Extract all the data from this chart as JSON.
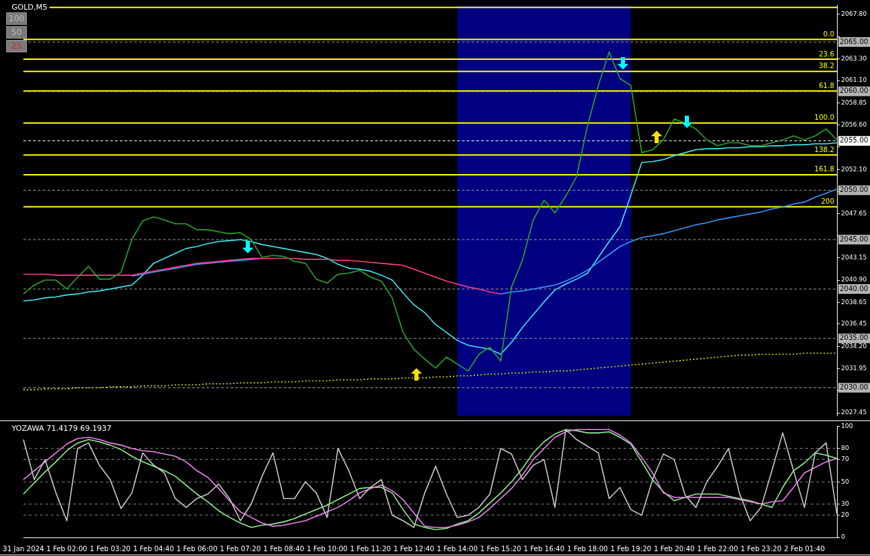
{
  "chart_data": [
    {
      "type": "line",
      "title": "GOLD,M5",
      "tick_labels": "y",
      "marker": "none",
      "legend": false,
      "grid": false,
      "annotations": [
        "100",
        "50",
        "25",
        {
          "text": "0.0",
          "y": 2065.27
        },
        {
          "text": "23.6",
          "y": 2063.27
        },
        {
          "text": "38.2",
          "y": 2062.03
        },
        {
          "text": "61.8",
          "y": 2060.04
        },
        {
          "text": "100.0",
          "y": 2056.8
        },
        {
          "text": "138.2",
          "y": 2053.56
        },
        {
          "text": "161.8",
          "y": 2051.57
        },
        {
          "text": "200",
          "y": 2048.33
        }
      ],
      "categories": [
        "31 Jan 2024",
        null,
        null,
        null,
        "1 Feb 02:00",
        null,
        null,
        null,
        "1 Feb 03:20",
        null,
        null,
        null,
        "1 Feb 04:40",
        null,
        null,
        null,
        "1 Feb 06:00",
        null,
        null,
        null,
        "1 Feb 07:20",
        null,
        null,
        null,
        "1 Feb 08:40",
        null,
        null,
        null,
        "1 Feb 10:00",
        null,
        null,
        null,
        "1 Feb 11:20",
        null,
        null,
        null,
        "1 Feb 12:40",
        null,
        null,
        null,
        "1 Feb 14:00",
        null,
        null,
        null,
        "1 Feb 15:20",
        null,
        null,
        null,
        "1 Feb 16:40",
        null,
        null,
        null,
        "1 Feb 18:00",
        null,
        null,
        null,
        "1 Feb 19:20",
        null,
        null,
        null,
        "1 Feb 20:40",
        null,
        null,
        null,
        "1 Feb 22:00",
        null,
        null,
        null,
        "1 Feb 23:20",
        null,
        null,
        null,
        "2 Feb 01:40",
        null,
        null,
        null
      ],
      "ylim": [
        2027.14,
        2068.74
      ],
      "yticks": [
        2027.45,
        {
          "value": 2029.7,
          "label": null
        },
        2031.95,
        {
          "value": 2034.2,
          "label": "2034.20"
        },
        2036.45,
        2038.65,
        {
          "value": 2040.9,
          "label": "2040.90"
        },
        2043.15,
        {
          "value": 2045.4,
          "label": null
        },
        2047.65,
        {
          "value": 2049.85,
          "label": null
        },
        {
          "value": 2052.1,
          "label": "2052.10"
        },
        {
          "value": 2054.35,
          "label": null
        },
        {
          "value": 2056.6,
          "label": "2056.60"
        },
        2058.85,
        {
          "value": 2061.1,
          "label": "2061.10"
        },
        {
          "value": 2063.3,
          "label": "2063.30"
        },
        {
          "value": 2065.55,
          "label": null
        },
        {
          "value": 2067.8,
          "label": "2067.80"
        }
      ],
      "bands": [
        {
          "axis": "x",
          "from": "1 Feb 14:00",
          "to": "1 Feb 19:20",
          "color": "#000080"
        }
      ],
      "ref_lines": [
        {
          "axis": "y",
          "value": 2065,
          "label": "2065.00",
          "color": "#9a9a9a",
          "line_style": "dashed"
        },
        {
          "axis": "y",
          "value": 2060,
          "label": "2060.00",
          "color": "#9a9a9a",
          "line_style": "dashed"
        },
        {
          "axis": "y",
          "value": 2055,
          "label": "2055.00",
          "color": "#ffffff",
          "line_style": "dashed"
        },
        {
          "axis": "y",
          "value": 2050,
          "label": "2050.00",
          "color": "#9a9a9a",
          "line_style": "dashed"
        },
        {
          "axis": "y",
          "value": 2045,
          "label": "2045.00",
          "color": "#9a9a9a",
          "line_style": "dashed"
        },
        {
          "axis": "y",
          "value": 2040,
          "label": "2040.00",
          "color": "#9a9a9a",
          "line_style": "dashed"
        },
        {
          "axis": "y",
          "value": 2035,
          "label": "2035.00",
          "color": "#9a9a9a",
          "line_style": "dashed"
        },
        {
          "axis": "y",
          "value": 2030,
          "label": "2030.00",
          "color": "#9a9a9a",
          "line_style": "dashed"
        },
        {
          "axis": "y",
          "value": 2068.5,
          "color": "#ffff00",
          "line_style": "solid"
        },
        {
          "axis": "y",
          "value": 2065.27,
          "color": "#ffff00",
          "line_style": "solid"
        },
        {
          "axis": "y",
          "value": 2063.27,
          "color": "#ffff00",
          "line_style": "solid"
        },
        {
          "axis": "y",
          "value": 2062.03,
          "color": "#ffff00",
          "line_style": "solid"
        },
        {
          "axis": "y",
          "value": 2060.04,
          "color": "#ffff00",
          "line_style": "solid"
        },
        {
          "axis": "y",
          "value": 2056.8,
          "color": "#ffff00",
          "line_style": "solid"
        },
        {
          "axis": "y",
          "value": 2053.56,
          "color": "#ffff00",
          "line_style": "solid"
        },
        {
          "axis": "y",
          "value": 2051.57,
          "color": "#ffff00",
          "line_style": "solid"
        },
        {
          "axis": "y",
          "value": 2048.33,
          "color": "#ffff00",
          "line_style": "solid"
        }
      ],
      "series": [
        {
          "color": "#2aa52a",
          "values": [
            2039.5,
            2040.4,
            2040.9,
            2040.9,
            2040.0,
            2041.2,
            2042.3,
            2041.0,
            2041.0,
            2041.7,
            2045.0,
            2046.9,
            2047.3,
            2047.0,
            2046.6,
            2046.6,
            2046.0,
            2046.0,
            2045.8,
            2045.6,
            2045.7,
            2045.0,
            2043.2,
            2043.4,
            2043.3,
            2042.8,
            2042.6,
            2041.0,
            2040.6,
            2041.5,
            2041.6,
            2041.9,
            2041.2,
            2040.8,
            2039.1,
            2035.6,
            2033.9,
            2032.9,
            2032.0,
            2033.1,
            2032.4,
            2031.7,
            2033.4,
            2034.1,
            2032.7,
            2040.2,
            2042.9,
            2047.0,
            2049.0,
            2047.7,
            2049.4,
            2051.4,
            2056.5,
            2060.6,
            2064.0,
            2061.3,
            2060.6,
            2053.8,
            2054.1,
            2055.1,
            2057.2,
            2056.8,
            2056.2,
            2055.1,
            2054.5,
            2054.8,
            2054.8,
            2054.5,
            2054.5,
            2054.8,
            2055.1,
            2055.5,
            2055.1,
            2055.5,
            2056.2,
            2055.1
          ]
        },
        {
          "color": "#ff3c8c",
          "values": [
            2041.5,
            2041.5,
            2041.5,
            2041.4,
            2041.4,
            2041.4,
            2041.4,
            2041.4,
            2041.4,
            2041.4,
            2041.4,
            2041.6,
            2041.8,
            2042.0,
            2042.2,
            2042.4,
            2042.6,
            2042.7,
            2042.8,
            2042.9,
            2043.0,
            2043.1,
            2043.1,
            2043.1,
            2043.1,
            2043.1,
            2043.0,
            2043.0,
            2043.0,
            2042.9,
            2042.9,
            2042.8,
            2042.7,
            2042.6,
            2042.5,
            2042.4,
            2042.0,
            2041.6,
            2041.2,
            2040.8,
            2040.5,
            2040.2,
            2040.0,
            2039.7,
            2039.5,
            null,
            null,
            null,
            null,
            null,
            null,
            null,
            null,
            null,
            null,
            null,
            null,
            null,
            null,
            null,
            null,
            null,
            null,
            null,
            null,
            null,
            null,
            null,
            null,
            null,
            null,
            null,
            null,
            null,
            null,
            null
          ]
        },
        {
          "color": "#3c96ff",
          "values": [
            null,
            null,
            null,
            null,
            null,
            null,
            null,
            null,
            null,
            null,
            2041.3,
            2041.5,
            2041.7,
            2041.9,
            2042.1,
            2042.3,
            2042.5,
            2042.6,
            2042.7,
            2042.8,
            2042.9,
            2043.0,
            2043.1,
            null,
            null,
            null,
            null,
            null,
            null,
            null,
            null,
            null,
            null,
            null,
            null,
            null,
            null,
            null,
            null,
            null,
            null,
            null,
            null,
            null,
            2039.5,
            2039.7,
            2039.8,
            2040.0,
            2040.2,
            2040.4,
            2040.8,
            2041.3,
            2041.9,
            2042.7,
            2043.5,
            2044.3,
            2044.8,
            2045.2,
            2045.4,
            2045.6,
            2045.9,
            2046.2,
            2046.5,
            2046.7,
            2047.0,
            2047.2,
            2047.4,
            2047.6,
            2047.8,
            2048.1,
            2048.3,
            2048.6,
            2048.8,
            2049.3,
            2049.7,
            2050.1
          ]
        },
        {
          "color": "#40e8f0",
          "values": [
            2038.8,
            2038.9,
            2039.1,
            2039.2,
            2039.4,
            2039.5,
            2039.7,
            2039.8,
            2040.0,
            2040.2,
            2040.4,
            2041.4,
            2042.6,
            2043.1,
            2043.6,
            2044.1,
            2044.3,
            2044.6,
            2044.8,
            2044.9,
            2045.0,
            2044.8,
            2044.5,
            2044.3,
            2044.1,
            2043.9,
            2043.7,
            2043.5,
            2043.1,
            2042.5,
            2042.1,
            2042.0,
            2041.8,
            2041.4,
            2040.9,
            2039.6,
            2038.4,
            2037.6,
            2036.4,
            2035.6,
            2034.8,
            2034.3,
            2034.1,
            2033.9,
            2033.4,
            2034.6,
            2036.1,
            2037.4,
            2038.7,
            2039.9,
            2040.5,
            2041.0,
            2041.6,
            2043.2,
            2044.8,
            2046.3,
            2049.5,
            2052.8,
            2052.9,
            2053.1,
            2053.5,
            2053.8,
            2054.1,
            2054.2,
            2054.2,
            2054.3,
            2054.3,
            2054.4,
            2054.4,
            2054.5,
            2054.5,
            2054.6,
            2054.6,
            2054.7,
            2054.7,
            2054.8
          ]
        },
        {
          "color": "#e6e600",
          "line_style": "dotted",
          "values": [
            2029.8,
            2029.8,
            2029.9,
            2029.9,
            2029.9,
            2030.0,
            2030.0,
            2030.0,
            2030.1,
            2030.1,
            2030.1,
            2030.2,
            2030.2,
            2030.2,
            2030.3,
            2030.3,
            2030.3,
            2030.4,
            2030.4,
            2030.4,
            2030.5,
            2030.5,
            2030.5,
            2030.6,
            2030.6,
            2030.6,
            2030.7,
            2030.7,
            2030.7,
            2030.8,
            2030.8,
            2030.8,
            2030.9,
            2030.9,
            2030.9,
            2031.0,
            2031.0,
            2031.0,
            2031.1,
            2031.1,
            2031.2,
            2031.2,
            2031.3,
            2031.4,
            2031.4,
            2031.5,
            2031.5,
            2031.6,
            2031.6,
            2031.7,
            2031.7,
            2031.8,
            2031.9,
            2032.0,
            2032.1,
            2032.2,
            2032.3,
            2032.4,
            2032.5,
            2032.6,
            2032.7,
            2032.8,
            2032.9,
            2033.0,
            2033.1,
            2033.2,
            2033.3,
            2033.3,
            2033.4,
            2033.4,
            2033.4,
            2033.4,
            2033.5,
            2033.5,
            2033.5,
            2033.5
          ]
        }
      ]
    },
    {
      "type": "line",
      "title": "YOZAWA 71.4179 69.1937",
      "marker": "none",
      "legend": false,
      "grid": "y",
      "categories": [
        "31 Jan 2024",
        null,
        null,
        null,
        "1 Feb 02:00",
        null,
        null,
        null,
        "1 Feb 03:20",
        null,
        null,
        null,
        "1 Feb 04:40",
        null,
        null,
        null,
        "1 Feb 06:00",
        null,
        null,
        null,
        "1 Feb 07:20",
        null,
        null,
        null,
        "1 Feb 08:40",
        null,
        null,
        null,
        "1 Feb 10:00",
        null,
        null,
        null,
        "1 Feb 11:20",
        null,
        null,
        null,
        "1 Feb 12:40",
        null,
        null,
        null,
        "1 Feb 14:00",
        null,
        null,
        null,
        "1 Feb 15:20",
        null,
        null,
        null,
        "1 Feb 16:40",
        null,
        null,
        null,
        "1 Feb 18:00",
        null,
        null,
        null,
        "1 Feb 19:20",
        null,
        null,
        null,
        "1 Feb 20:40",
        null,
        null,
        null,
        "1 Feb 22:00",
        null,
        null,
        null,
        "1 Feb 23:20",
        null,
        null,
        null,
        "2 Feb 01:40",
        null,
        null,
        null
      ],
      "ylim": [
        0,
        100
      ],
      "yticks": [
        0,
        20,
        30,
        50,
        70,
        80,
        100
      ],
      "series": [
        {
          "color": "#c8c8c8",
          "values": [
            88,
            52,
            70,
            40,
            15,
            80,
            85,
            65,
            52,
            26,
            40,
            76,
            65,
            58,
            35,
            27,
            35,
            39,
            48,
            35,
            15,
            30,
            55,
            76,
            35,
            35,
            50,
            40,
            18,
            80,
            60,
            35,
            45,
            52,
            20,
            15,
            9,
            40,
            64,
            39,
            18,
            20,
            27,
            39,
            80,
            75,
            52,
            65,
            70,
            27,
            97,
            88,
            82,
            76,
            35,
            45,
            25,
            20,
            52,
            75,
            70,
            38,
            27,
            50,
            64,
            80,
            40,
            15,
            27,
            60,
            94,
            60,
            27,
            76,
            85,
            21
          ]
        },
        {
          "color": "#ee82ee",
          "values": [
            52,
            60,
            68,
            76,
            84,
            89,
            90,
            88,
            85,
            83,
            80,
            78,
            77,
            75,
            73,
            68,
            60,
            54,
            44,
            33,
            23,
            18,
            13,
            10,
            11,
            13,
            15,
            19,
            23,
            27,
            33,
            40,
            44,
            47,
            42,
            34,
            22,
            10,
            9,
            9,
            11,
            14,
            18,
            26,
            35,
            44,
            56,
            70,
            80,
            90,
            95,
            97,
            97,
            97,
            97,
            92,
            85,
            72,
            58,
            40,
            36,
            36,
            36,
            36,
            36,
            36,
            34,
            32,
            30,
            32,
            33,
            45,
            58,
            63,
            68,
            71
          ]
        },
        {
          "color": "#90ee90",
          "values": [
            39,
            49,
            59,
            68,
            78,
            85,
            88,
            86,
            83,
            79,
            73,
            68,
            64,
            60,
            55,
            47,
            39,
            32,
            24,
            18,
            13,
            9,
            11,
            12,
            14,
            17,
            21,
            25,
            29,
            34,
            39,
            44,
            45,
            45,
            40,
            25,
            12,
            9,
            7,
            8,
            12,
            15,
            22,
            31,
            40,
            50,
            62,
            76,
            86,
            93,
            97,
            96,
            94,
            94,
            95,
            90,
            84,
            68,
            52,
            41,
            33,
            36,
            39,
            39,
            39,
            37,
            35,
            33,
            30,
            27,
            45,
            60,
            67,
            76,
            74,
            71
          ]
        }
      ]
    }
  ]
}
